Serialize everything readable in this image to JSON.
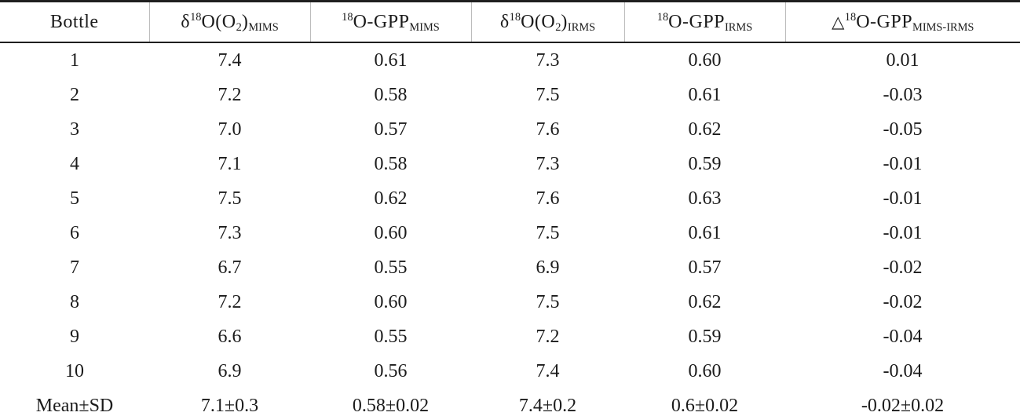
{
  "table": {
    "columns": [
      {
        "key": "bottle",
        "label_text": "Bottle",
        "segments": [
          {
            "t": "text",
            "v": "Bottle"
          }
        ]
      },
      {
        "key": "d18o-o2-mims",
        "label_text": "δ18O(O2)MIMS",
        "segments": [
          {
            "t": "text",
            "v": "δ"
          },
          {
            "t": "sup",
            "v": "18"
          },
          {
            "t": "text",
            "v": "O(O"
          },
          {
            "t": "sub",
            "v": "2"
          },
          {
            "t": "text",
            "v": ")"
          },
          {
            "t": "sub",
            "v": "MIMS"
          }
        ]
      },
      {
        "key": "18o-gpp-mims",
        "label_text": "18O-GPPMIMS",
        "segments": [
          {
            "t": "sup",
            "v": "18"
          },
          {
            "t": "text",
            "v": "O-GPP"
          },
          {
            "t": "sub",
            "v": "MIMS"
          }
        ]
      },
      {
        "key": "d18o-o2-irms",
        "label_text": "δ18O(O2)IRMS",
        "segments": [
          {
            "t": "text",
            "v": "δ"
          },
          {
            "t": "sup",
            "v": "18"
          },
          {
            "t": "text",
            "v": "O(O"
          },
          {
            "t": "sub",
            "v": "2"
          },
          {
            "t": "text",
            "v": ")"
          },
          {
            "t": "sub",
            "v": "IRMS"
          }
        ]
      },
      {
        "key": "18o-gpp-irms",
        "label_text": "18O-GPPIRMS",
        "segments": [
          {
            "t": "sup",
            "v": "18"
          },
          {
            "t": "text",
            "v": "O-GPP"
          },
          {
            "t": "sub",
            "v": "IRMS"
          }
        ]
      },
      {
        "key": "delta-18o-gpp-mims-irms",
        "label_text": "△18O-GPPMIMS-IRMS",
        "segments": [
          {
            "t": "tri",
            "v": "△"
          },
          {
            "t": "sup",
            "v": "18"
          },
          {
            "t": "text",
            "v": "O-GPP"
          },
          {
            "t": "sub",
            "v": "MIMS-IRMS"
          }
        ]
      }
    ],
    "rows": [
      [
        "1",
        "7.4",
        "0.61",
        "7.3",
        "0.60",
        "0.01"
      ],
      [
        "2",
        "7.2",
        "0.58",
        "7.5",
        "0.61",
        "-0.03"
      ],
      [
        "3",
        "7.0",
        "0.57",
        "7.6",
        "0.62",
        "-0.05"
      ],
      [
        "4",
        "7.1",
        "0.58",
        "7.3",
        "0.59",
        "-0.01"
      ],
      [
        "5",
        "7.5",
        "0.62",
        "7.6",
        "0.63",
        "-0.01"
      ],
      [
        "6",
        "7.3",
        "0.60",
        "7.5",
        "0.61",
        "-0.01"
      ],
      [
        "7",
        "6.7",
        "0.55",
        "6.9",
        "0.57",
        "-0.02"
      ],
      [
        "8",
        "7.2",
        "0.60",
        "7.5",
        "0.62",
        "-0.02"
      ],
      [
        "9",
        "6.6",
        "0.55",
        "7.2",
        "0.59",
        "-0.04"
      ],
      [
        "10",
        "6.9",
        "0.56",
        "7.4",
        "0.60",
        "-0.04"
      ]
    ],
    "summary_row": [
      "Mean±SD",
      "7.1±0.3",
      "0.58±0.02",
      "7.4±0.2",
      "0.6±0.02",
      "-0.02±0.02"
    ]
  },
  "colors": {
    "text": "#1b1b1b",
    "rule": "#1f1f1f",
    "tick": "#bcbcbc",
    "background": "#ffffff"
  }
}
